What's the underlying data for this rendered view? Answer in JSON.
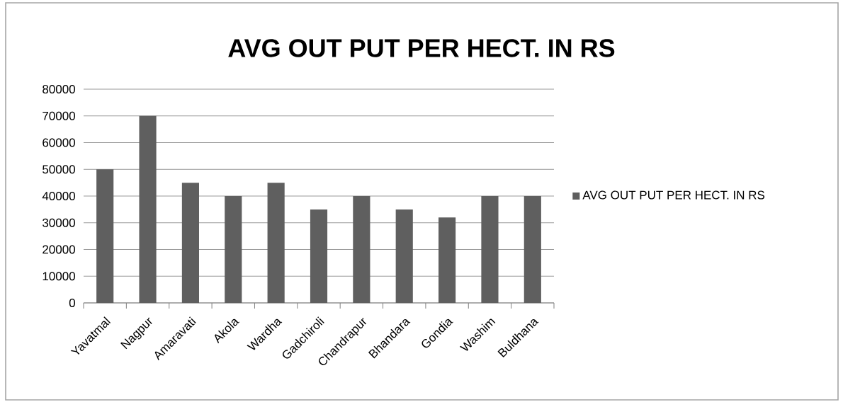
{
  "chart_data": {
    "type": "bar",
    "title": "AVG OUT PUT PER HECT. IN RS",
    "categories": [
      "Yavatmal",
      "Nagpur",
      "Amaravati",
      "Akola",
      "Wardha",
      "Gadchiroli",
      "Chandrapur",
      "Bhandara",
      "Gondia",
      "Washim",
      "Buldhana"
    ],
    "series": [
      {
        "name": "AVG OUT PUT PER HECT. IN RS",
        "color": "#5f5f5f",
        "values": [
          50000,
          70000,
          45000,
          40000,
          45000,
          35000,
          40000,
          35000,
          32000,
          40000,
          40000
        ]
      }
    ],
    "ylim": [
      0,
      80000
    ],
    "yticks": [
      0,
      10000,
      20000,
      30000,
      40000,
      50000,
      60000,
      70000,
      80000
    ],
    "grid": "y",
    "legend": "right"
  }
}
